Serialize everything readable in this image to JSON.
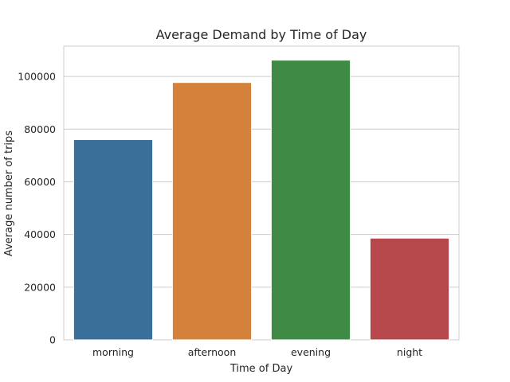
{
  "chart_data": {
    "type": "bar",
    "title": "Average Demand by Time of Day",
    "xlabel": "Time of Day",
    "ylabel": "Average number of trips",
    "categories": [
      "morning",
      "afternoon",
      "evening",
      "night"
    ],
    "values": [
      76000,
      97700,
      106200,
      38600
    ],
    "colors": [
      "#3a6f9a",
      "#d4823b",
      "#3f8a44",
      "#b6474a"
    ],
    "ylim": [
      0,
      111510
    ],
    "yticks": [
      0,
      20000,
      40000,
      60000,
      80000,
      100000
    ],
    "ytick_labels": [
      "0",
      "20000",
      "40000",
      "60000",
      "80000",
      "100000"
    ],
    "grid": true,
    "grid_axis": "y",
    "legend": false
  }
}
